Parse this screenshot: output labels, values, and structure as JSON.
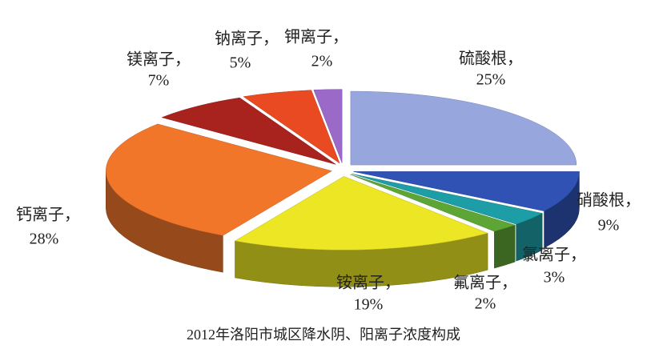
{
  "chart_data": {
    "type": "pie",
    "title": "2012年洛阳市城区降水阴、阳离子浓度构成",
    "categories": [
      "硫酸根，",
      "硝酸根，",
      "氯离子，",
      "氟离子，",
      "铵离子，",
      "钙离子，",
      "镁离子，",
      "钠离子，",
      "钾离子，"
    ],
    "values": [
      25,
      9,
      3,
      2,
      19,
      28,
      7,
      5,
      2
    ],
    "value_labels": [
      "25%",
      "9%",
      "3%",
      "2%",
      "19%",
      "28%",
      "7%",
      "5%",
      "2%"
    ],
    "colors": [
      "#98a6de",
      "#2f52b4",
      "#1d9ea6",
      "#5da535",
      "#ece624",
      "#f2762a",
      "#a8221e",
      "#ea4a22",
      "#9b6ac8"
    ]
  }
}
